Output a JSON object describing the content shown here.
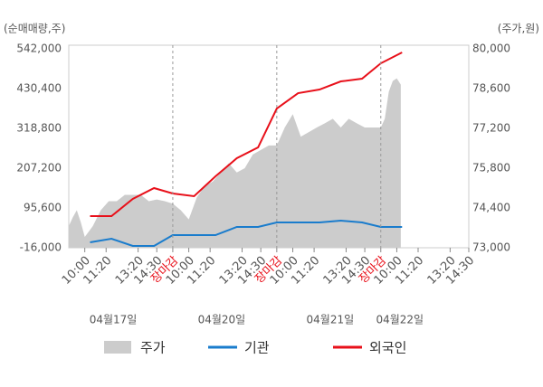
{
  "chart_data": {
    "type": "line",
    "ylabel": "(순매매량,주)",
    "y2label": "(주가,원)",
    "xlim": [
      0,
      25
    ],
    "xticks": [
      {
        "value": 1,
        "label": "10:00"
      },
      {
        "value": 2.333,
        "label": "11:20"
      },
      {
        "value": 4.333,
        "label": "13:20"
      },
      {
        "value": 5.5,
        "label": "14:30"
      },
      {
        "value": 6.5,
        "label": "장마감"
      },
      {
        "value": 7.5,
        "label": "10:00"
      },
      {
        "value": 8.833,
        "label": "11:20"
      },
      {
        "value": 10.833,
        "label": "13:20"
      },
      {
        "value": 12,
        "label": "14:30"
      },
      {
        "value": 13,
        "label": "장마감"
      },
      {
        "value": 14,
        "label": "10:00"
      },
      {
        "value": 15.333,
        "label": "11:20"
      },
      {
        "value": 17.333,
        "label": "13:20"
      },
      {
        "value": 18.5,
        "label": "14:30"
      },
      {
        "value": 19.5,
        "label": "장마감"
      },
      {
        "value": 20.5,
        "label": "10:00"
      },
      {
        "value": 21.833,
        "label": "11:20"
      },
      {
        "value": 23.833,
        "label": "13:20"
      },
      {
        "value": 25,
        "label": "14:30"
      }
    ],
    "dates": [
      "04월17일",
      "04월20일",
      "04월21일",
      "04월22일"
    ],
    "ylim": [
      -16000,
      542000
    ],
    "yticks": [
      {
        "value": -16000,
        "label": "-16,000"
      },
      {
        "value": 95600,
        "label": "95,600"
      },
      {
        "value": 207200,
        "label": "207,200"
      },
      {
        "value": 318800,
        "label": "318,800"
      },
      {
        "value": 430400,
        "label": "430,400"
      },
      {
        "value": 542000,
        "label": "542,000"
      }
    ],
    "y2lim": [
      73000,
      80000
    ],
    "y2ticks": [
      {
        "value": 73000,
        "label": "73,000"
      },
      {
        "value": 74400,
        "label": "74,400"
      },
      {
        "value": 75800,
        "label": "75,800"
      },
      {
        "value": 77200,
        "label": "77,200"
      },
      {
        "value": 78600,
        "label": "78,600"
      },
      {
        "value": 80000,
        "label": "80,000"
      }
    ],
    "series": [
      {
        "name": "주가",
        "color": "#cccccc",
        "axis": "y2",
        "style": "area",
        "x": [
          0,
          0.25,
          0.5,
          0.75,
          1,
          1.5,
          2,
          2.5,
          3,
          3.5,
          4,
          4.5,
          5,
          5.5,
          6,
          6.5,
          7,
          7.5,
          8,
          8.5,
          9,
          9.5,
          10,
          10.5,
          11,
          11.5,
          12,
          12.5,
          13,
          13.5,
          14,
          14.5,
          15,
          15.5,
          16,
          16.5,
          17,
          17.5,
          18,
          18.5,
          19,
          19.5,
          19.75,
          20,
          20.25,
          20.5,
          20.75
        ],
        "values": [
          73760,
          74070,
          74320,
          73900,
          73380,
          73760,
          74320,
          74640,
          74640,
          74860,
          74860,
          74860,
          74640,
          74700,
          74640,
          74550,
          74320,
          74000,
          74770,
          75180,
          75330,
          75650,
          75970,
          75650,
          75800,
          76280,
          76440,
          76600,
          76600,
          77230,
          77700,
          76910,
          77070,
          77230,
          77380,
          77540,
          77230,
          77540,
          77380,
          77230,
          77230,
          77230,
          77540,
          78490,
          78870,
          78960,
          78740
        ]
      },
      {
        "name": "기관",
        "color": "#1a7ccc",
        "style": "line",
        "x": [
          1.33,
          2.67,
          4,
          5.33,
          6.5,
          7.83,
          9.17,
          10.5,
          11.83,
          13,
          14.33,
          15.67,
          17,
          18.33,
          19.5,
          20.83
        ],
        "values": [
          -780,
          9360,
          -10930,
          -10930,
          19500,
          19500,
          19500,
          42330,
          42330,
          55010,
          55010,
          55010,
          60080,
          55010,
          42330,
          42330
        ]
      },
      {
        "name": "외국인",
        "color": "#e8101a",
        "style": "line",
        "x": [
          1.33,
          2.67,
          4,
          5.33,
          6.5,
          7.83,
          9.17,
          10.5,
          11.83,
          13,
          14.33,
          15.67,
          17,
          18.33,
          19.5,
          20.83
        ],
        "values": [
          72760,
          72760,
          120940,
          151380,
          136160,
          128550,
          184340,
          235060,
          265500,
          374540,
          417660,
          427800,
          450620,
          458230,
          501340,
          531780
        ]
      }
    ]
  }
}
